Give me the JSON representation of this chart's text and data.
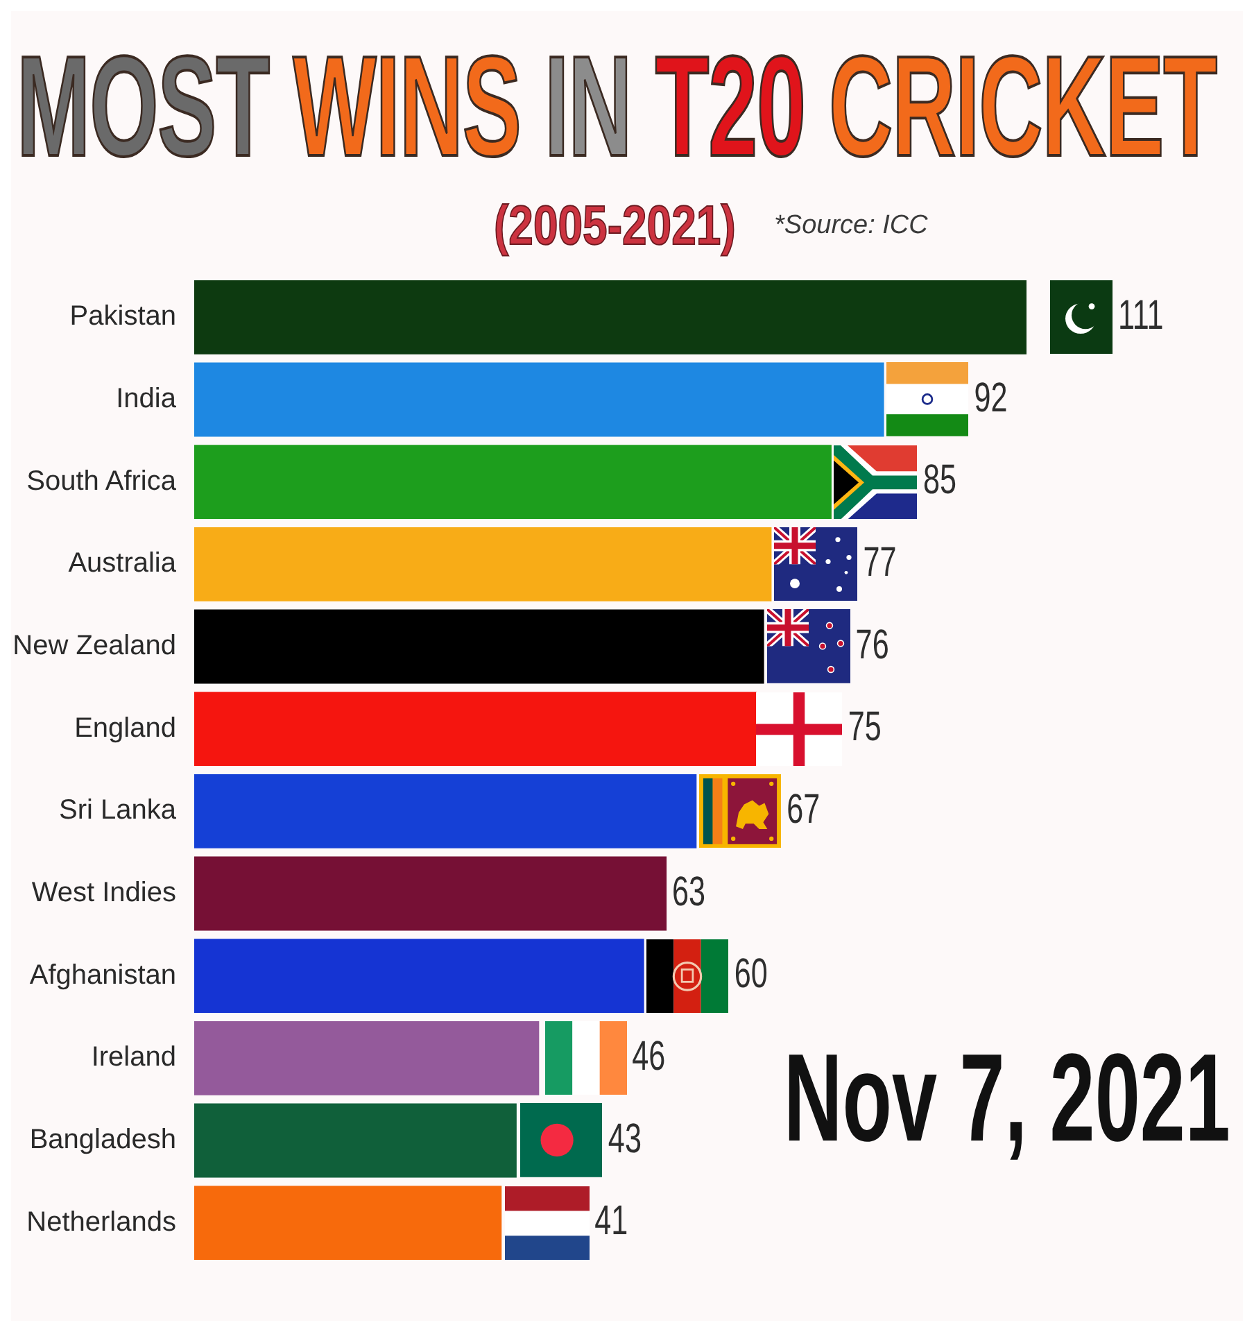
{
  "chart_data": {
    "type": "bar",
    "orientation": "horizontal",
    "title": "MOST WINS IN T20 CRICKET",
    "subtitle": "(2005-2021)",
    "annotations": [
      "*Source: ICC",
      "Nov 7, 2021"
    ],
    "categories": [
      "Pakistan",
      "India",
      "South Africa",
      "Australia",
      "New Zealand",
      "England",
      "Sri Lanka",
      "West Indies",
      "Afghanistan",
      "Ireland",
      "Bangladesh",
      "Netherlands"
    ],
    "values": [
      111,
      92,
      85,
      77,
      76,
      75,
      67,
      63,
      60,
      46,
      43,
      41
    ],
    "colors": [
      "#0d3a10",
      "#1e88e2",
      "#1d9e1d",
      "#f8ac17",
      "#000000",
      "#f5150f",
      "#1540d6",
      "#761035",
      "#1534d3",
      "#945a9b",
      "#10603a",
      "#f76a0c"
    ],
    "data_labels": true,
    "tick_labels": "y"
  }
}
